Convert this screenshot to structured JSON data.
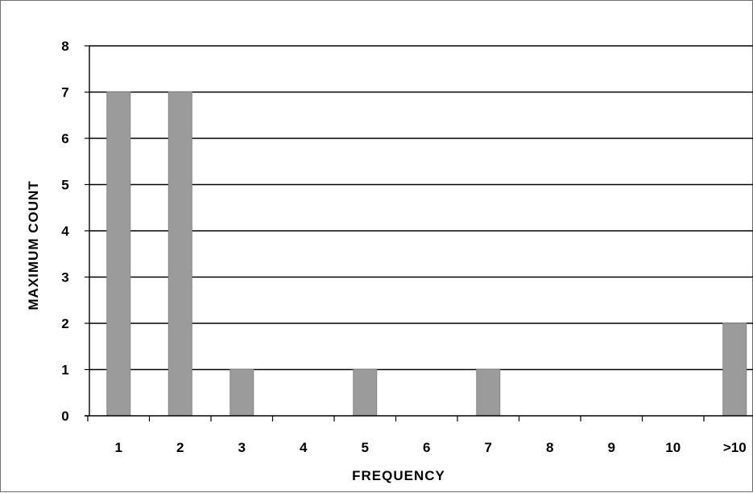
{
  "chart_data": {
    "type": "bar",
    "title": "",
    "xlabel": "FREQUENCY",
    "ylabel": "MAXIMUM COUNT",
    "categories": [
      "1",
      "2",
      "3",
      "4",
      "5",
      "6",
      "7",
      "8",
      "9",
      "10",
      ">10"
    ],
    "values": [
      7,
      7,
      1,
      0,
      1,
      0,
      1,
      0,
      0,
      0,
      2
    ],
    "ylim": [
      0,
      8
    ],
    "yticks": [
      0,
      1,
      2,
      3,
      4,
      5,
      6,
      7,
      8
    ],
    "grid": true,
    "legend": "none",
    "colors": {
      "bar": "#9b9b9b",
      "bar_edge": "#858585",
      "gridline": "#000000",
      "axis": "#000000"
    }
  }
}
